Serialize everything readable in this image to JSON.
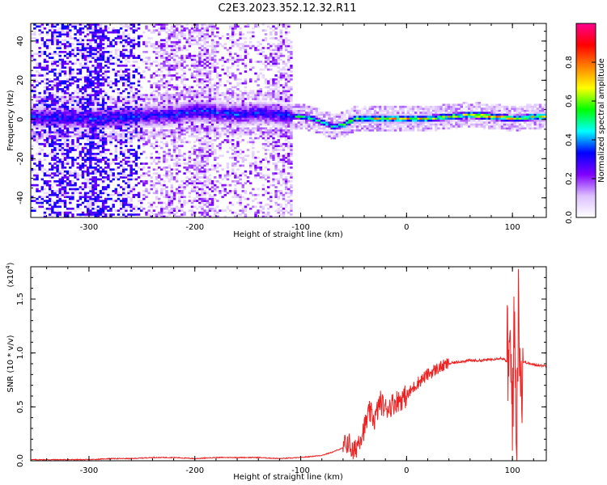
{
  "title": "C2E3.2023.352.12.32.R11",
  "chart_data": [
    {
      "type": "heatmap",
      "xlabel": "Height of straight line (km)",
      "ylabel": "Frequency (Hz)",
      "xlim": [
        -355,
        132
      ],
      "ylim": [
        -50,
        49
      ],
      "xticks": [
        -300,
        -200,
        -100,
        0,
        100
      ],
      "xtick_labels": [
        "-300",
        "-200",
        "-100",
        "0",
        "100"
      ],
      "yticks": [
        -40,
        -20,
        0,
        20,
        40
      ],
      "ytick_labels": [
        "-40",
        "-20",
        "0",
        "20",
        "40"
      ],
      "colorbar": {
        "label": "Normalized spectral amplitude",
        "range": [
          0,
          1
        ],
        "ticks": [
          0.0,
          0.2,
          0.4,
          0.6,
          0.8
        ],
        "tick_labels": [
          "0.0",
          "0.2",
          "0.4",
          "0.6",
          "0.8"
        ],
        "colors": [
          "#ffffff",
          "#dcc0ff",
          "#7f00ff",
          "#0000ff",
          "#00ffff",
          "#00ff00",
          "#ffff00",
          "#ff8000",
          "#ff0000",
          "#ff0090"
        ]
      },
      "ridge": {
        "description_points_x": [
          -355,
          -300,
          -260,
          -220,
          -200,
          -180,
          -160,
          -140,
          -120,
          -100,
          -90,
          -80,
          -70,
          -60,
          -50,
          -40,
          -20,
          0,
          20,
          40,
          60,
          80,
          100,
          120,
          132
        ],
        "frequency_y": [
          1,
          0,
          1,
          2,
          4,
          3,
          2,
          3,
          2,
          1,
          0,
          -2,
          -4,
          -3,
          0,
          0,
          0,
          0,
          0,
          1,
          2,
          1,
          0,
          1,
          1
        ]
      },
      "noise_extent_x": [
        -355,
        -110
      ],
      "grid": false
    },
    {
      "type": "line",
      "xlabel": "Height of straight line (km)",
      "ylabel": "SNR (10 * v/v)",
      "y_multiplier": "(x10",
      "y_multiplier_exp": "4",
      "y_multiplier_close": ")",
      "xlim": [
        -355,
        132
      ],
      "ylim": [
        0,
        1.8
      ],
      "xticks": [
        -300,
        -200,
        -100,
        0,
        100
      ],
      "xtick_labels": [
        "-300",
        "-200",
        "-100",
        "0",
        "100"
      ],
      "yticks": [
        0.0,
        0.5,
        1.0,
        1.5
      ],
      "ytick_labels": [
        "0.0",
        "0.5",
        "1.0",
        "1.5"
      ],
      "line_color": "#ee2222",
      "series": [
        {
          "x": [
            -355,
            -330,
            -300,
            -280,
            -260,
            -240,
            -220,
            -200,
            -180,
            -160,
            -140,
            -120,
            -100,
            -80,
            -70,
            -60,
            -55,
            -50,
            -45,
            -40,
            -35,
            -30,
            -25,
            -20,
            -10,
            0,
            10,
            20,
            30,
            40,
            50,
            60,
            70,
            80,
            85,
            90,
            95,
            98,
            100,
            102,
            104,
            106,
            108,
            110,
            120,
            132
          ],
          "values": [
            0.01,
            0.01,
            0.01,
            0.02,
            0.02,
            0.03,
            0.03,
            0.02,
            0.03,
            0.03,
            0.03,
            0.02,
            0.03,
            0.05,
            0.08,
            0.12,
            0.18,
            0.06,
            0.2,
            0.3,
            0.45,
            0.38,
            0.55,
            0.48,
            0.55,
            0.6,
            0.72,
            0.8,
            0.86,
            0.9,
            0.92,
            0.93,
            0.93,
            0.94,
            0.95,
            0.95,
            0.92,
            0.9,
            0.6,
            1.2,
            0.3,
            1.6,
            0.7,
            0.92,
            0.89,
            0.88
          ]
        }
      ],
      "grid": false
    }
  ]
}
